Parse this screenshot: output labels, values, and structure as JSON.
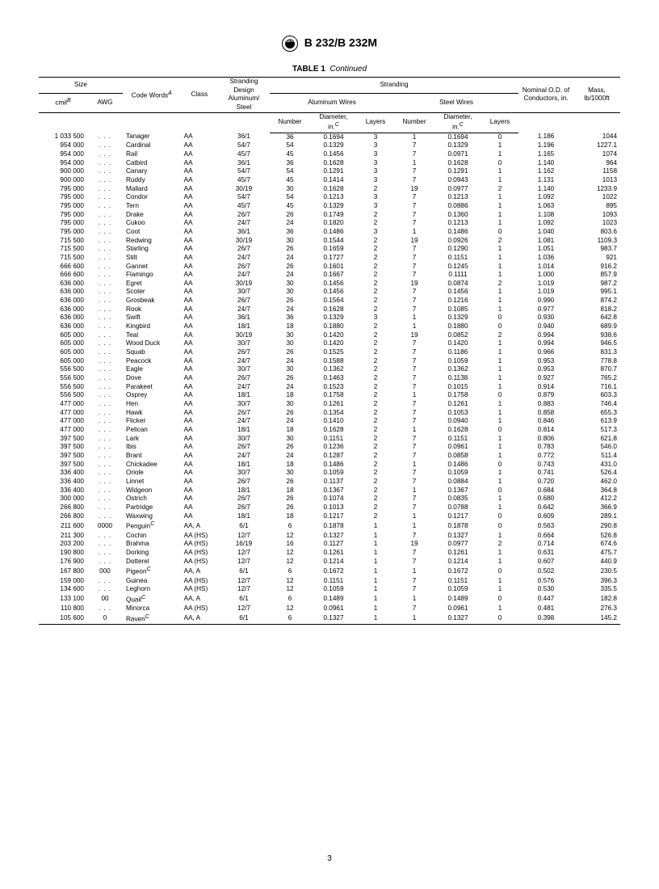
{
  "doc_title": "B 232/B 232M",
  "logo_text": "ASTM",
  "table_label": "TABLE 1",
  "table_cont": "Continued",
  "page_number": "3",
  "headers": {
    "size": "Size",
    "cmil": "cmil",
    "cmil_sup": "B",
    "awg": "AWG",
    "code_words": "Code Words",
    "code_words_sup": "A",
    "class": "Class",
    "strand_design": "Stranding Design Aluminum/ Steel",
    "stranding": "Stranding",
    "al_wires": "Aluminum Wires",
    "steel_wires": "Steel Wires",
    "number": "Number",
    "diameter": "Diameter, in.",
    "diameter_sup": "C",
    "layers": "Layers",
    "nominal_od": "Nominal O.D. of Conductors, in.",
    "mass": "Mass, lb/1000ft"
  },
  "rows": [
    [
      "1 033 500",
      ". . .",
      "Tanager",
      "",
      "AA",
      "36/1",
      "36",
      "0.1694",
      "3",
      "1",
      "0.1694",
      "0",
      "1.186",
      "1044"
    ],
    [
      "954 000",
      ". . .",
      "Cardinal",
      "",
      "AA",
      "54/7",
      "54",
      "0.1329",
      "3",
      "7",
      "0.1329",
      "1",
      "1.196",
      "1227.1"
    ],
    [
      "954 000",
      ". . .",
      "Rail",
      "",
      "AA",
      "45/7",
      "45",
      "0.1456",
      "3",
      "7",
      "0.0971",
      "1",
      "1.165",
      "1074"
    ],
    [
      "954 000",
      ". . .",
      "Catbird",
      "",
      "AA",
      "36/1",
      "36",
      "0.1628",
      "3",
      "1",
      "0.1628",
      "0",
      "1.140",
      "964"
    ],
    [
      "900 000",
      ". . .",
      "Canary",
      "",
      "AA",
      "54/7",
      "54",
      "0.1291",
      "3",
      "7",
      "0.1291",
      "1",
      "1.162",
      "1158"
    ],
    [
      "900 000",
      ". . .",
      "Ruddy",
      "",
      "AA",
      "45/7",
      "45",
      "0.1414",
      "3",
      "7",
      "0.0943",
      "1",
      "1.131",
      "1013"
    ],
    [
      "795 000",
      ". . .",
      "Mallard",
      "",
      "AA",
      "30/19",
      "30",
      "0.1628",
      "2",
      "19",
      "0.0977",
      "2",
      "1.140",
      "1233.9"
    ],
    [
      "795 000",
      ". . .",
      "Condor",
      "",
      "AA",
      "54/7",
      "54",
      "0.1213",
      "3",
      "7",
      "0.1213",
      "1",
      "1.092",
      "1022"
    ],
    [
      "795 000",
      ". . .",
      "Tern",
      "",
      "AA",
      "45/7",
      "45",
      "0.1329",
      "3",
      "7",
      "0.0886",
      "1",
      "1.063",
      "895"
    ],
    [
      "795 000",
      ". . .",
      "Drake",
      "",
      "AA",
      "26/7",
      "26",
      "0.1749",
      "2",
      "7",
      "0.1360",
      "1",
      "1.108",
      "1093"
    ],
    [
      "795 000",
      ". . .",
      "Cukoo",
      "",
      "AA",
      "24/7",
      "24",
      "0.1820",
      "2",
      "7",
      "0.1213",
      "1",
      "1.092",
      "1023"
    ],
    [
      "795 000",
      ". . .",
      "Coot",
      "",
      "AA",
      "36/1",
      "36",
      "0.1486",
      "3",
      "1",
      "0.1486",
      "0",
      "1.040",
      "803.6"
    ],
    [
      "715 500",
      ". . .",
      "Redwing",
      "",
      "AA",
      "30/19",
      "30",
      "0.1544",
      "2",
      "19",
      "0.0926",
      "2",
      "1.081",
      "1109.3"
    ],
    [
      "715 500",
      ". . .",
      "Starling",
      "",
      "AA",
      "26/7",
      "26",
      "0.1659",
      "2",
      "7",
      "0.1290",
      "1",
      "1.051",
      "983.7"
    ],
    [
      "715 500",
      ". . .",
      "Stilt",
      "",
      "AA",
      "24/7",
      "24",
      "0.1727",
      "2",
      "7",
      "0.1151",
      "1",
      "1.036",
      "921"
    ],
    [
      "666 600",
      ". . .",
      "Gannet",
      "",
      "AA",
      "26/7",
      "26",
      "0.1601",
      "2",
      "7",
      "0.1245",
      "1",
      "1.014",
      "916.2"
    ],
    [
      "666 600",
      ". . .",
      "Flamingo",
      "",
      "AA",
      "24/7",
      "24",
      "0.1667",
      "2",
      "7",
      "0.1111",
      "1",
      "1.000",
      "857.9"
    ],
    [
      "636 000",
      ". . .",
      "Egret",
      "",
      "AA",
      "30/19",
      "30",
      "0.1456",
      "2",
      "19",
      "0.0874",
      "2",
      "1.019",
      "987.2"
    ],
    [
      "636 000",
      ". . .",
      "Scoter",
      "",
      "AA",
      "30/7",
      "30",
      "0.1456",
      "2",
      "7",
      "0.1456",
      "1",
      "1.019",
      "995.1"
    ],
    [
      "636 000",
      ". . .",
      "Grosbeak",
      "",
      "AA",
      "26/7",
      "26",
      "0.1564",
      "2",
      "7",
      "0.1216",
      "1",
      "0.990",
      "874.2"
    ],
    [
      "636 000",
      ". . .",
      "Rook",
      "",
      "AA",
      "24/7",
      "24",
      "0.1628",
      "2",
      "7",
      "0.1085",
      "1",
      "0.977",
      "818.2"
    ],
    [
      "636 000",
      ". . .",
      "Swift",
      "",
      "AA",
      "36/1",
      "36",
      "0.1329",
      "3",
      "1",
      "0.1329",
      "0",
      "0.930",
      "642.8"
    ],
    [
      "636 000",
      ". . .",
      "Kingbird",
      "",
      "AA",
      "18/1",
      "18",
      "0.1880",
      "2",
      "1",
      "0.1880",
      "0",
      "0.940",
      "689.9"
    ],
    [
      "605 000",
      ". . .",
      "Teal",
      "",
      "AA",
      "30/19",
      "30",
      "0.1420",
      "2",
      "19",
      "0.0852",
      "2",
      "0.994",
      "938.6"
    ],
    [
      "605 000",
      ". . .",
      "Wood Duck",
      "",
      "AA",
      "30/7",
      "30",
      "0.1420",
      "2",
      "7",
      "0.1420",
      "1",
      "0.994",
      "946.5"
    ],
    [
      "605 000",
      ". . .",
      "Squab",
      "",
      "AA",
      "26/7",
      "26",
      "0.1525",
      "2",
      "7",
      "0.1186",
      "1",
      "0.966",
      "831.3"
    ],
    [
      "605 000",
      ". . .",
      "Peacock",
      "",
      "AA",
      "24/7",
      "24",
      "0.1588",
      "2",
      "7",
      "0.1059",
      "1",
      "0.953",
      "778.8"
    ],
    [
      "556 500",
      ". . .",
      "Eagle",
      "",
      "AA",
      "30/7",
      "30",
      "0.1362",
      "2",
      "7",
      "0.1362",
      "1",
      "0.953",
      "870.7"
    ],
    [
      "556 500",
      ". . .",
      "Dove",
      "",
      "AA",
      "26/7",
      "26",
      "0.1463",
      "2",
      "7",
      "0.1138",
      "1",
      "0.927",
      "765.2"
    ],
    [
      "556 500",
      ". . .",
      "Parakeet",
      "",
      "AA",
      "24/7",
      "24",
      "0.1523",
      "2",
      "7",
      "0.1015",
      "1",
      "0.914",
      "716.1"
    ],
    [
      "556 500",
      ". . .",
      "Osprey",
      "",
      "AA",
      "18/1",
      "18",
      "0.1758",
      "2",
      "1",
      "0.1758",
      "0",
      "0.879",
      "603.3"
    ],
    [
      "477 000",
      ". . .",
      "Hen",
      "",
      "AA",
      "30/7",
      "30",
      "0.1261",
      "2",
      "7",
      "0.1261",
      "1",
      "0.883",
      "746.4"
    ],
    [
      "477 000",
      ". . .",
      "Hawk",
      "",
      "AA",
      "26/7",
      "26",
      "0.1354",
      "2",
      "7",
      "0.1053",
      "1",
      "0.858",
      "655.3"
    ],
    [
      "477 000",
      ". . .",
      "Flicker",
      "",
      "AA",
      "24/7",
      "24",
      "0.1410",
      "2",
      "7",
      "0.0940",
      "1",
      "0.846",
      "613.9"
    ],
    [
      "477 000",
      ". . .",
      "Pelican",
      "",
      "AA",
      "18/1",
      "18",
      "0.1628",
      "2",
      "1",
      "0.1628",
      "0",
      "0.814",
      "517.3"
    ],
    [
      "397 500",
      ". . .",
      "Lark",
      "",
      "AA",
      "30/7",
      "30",
      "0.1151",
      "2",
      "7",
      "0.1151",
      "1",
      "0.806",
      "621.8"
    ],
    [
      "397 500",
      ". . .",
      "Ibis",
      "",
      "AA",
      "26/7",
      "26",
      "0.1236",
      "2",
      "7",
      "0.0961",
      "1",
      "0.783",
      "546.0"
    ],
    [
      "397 500",
      ". . .",
      "Brant",
      "",
      "AA",
      "24/7",
      "24",
      "0.1287",
      "2",
      "7",
      "0.0858",
      "1",
      "0.772",
      "511.4"
    ],
    [
      "397 500",
      ". . .",
      "Chickadee",
      "",
      "AA",
      "18/1",
      "18",
      "0.1486",
      "2",
      "1",
      "0.1486",
      "0",
      "0.743",
      "431.0"
    ],
    [
      "336 400",
      ". . .",
      "Oriole",
      "",
      "AA",
      "30/7",
      "30",
      "0.1059",
      "2",
      "7",
      "0.1059",
      "1",
      "0.741",
      "526.4"
    ],
    [
      "336 400",
      ". . .",
      "Linnet",
      "",
      "AA",
      "26/7",
      "26",
      "0.1137",
      "2",
      "7",
      "0.0884",
      "1",
      "0.720",
      "462.0"
    ],
    [
      "336 400",
      ". . .",
      "Widgeon",
      "",
      "AA",
      "18/1",
      "18",
      "0.1367",
      "2",
      "1",
      "0.1367",
      "0",
      "0.684",
      "364.8"
    ],
    [
      "300 000",
      ". . .",
      "Ostrich",
      "",
      "AA",
      "26/7",
      "26",
      "0.1074",
      "2",
      "7",
      "0.0835",
      "1",
      "0.680",
      "412.2"
    ],
    [
      "266 800",
      ". . .",
      "Partridge",
      "",
      "AA",
      "26/7",
      "26",
      "0.1013",
      "2",
      "7",
      "0.0788",
      "1",
      "0.642",
      "366.9"
    ],
    [
      "266 800",
      ". . .",
      "Waxwing",
      "",
      "AA",
      "18/1",
      "18",
      "0.1217",
      "2",
      "1",
      "0.1217",
      "0",
      "0.609",
      "289.1"
    ],
    [
      "211 600",
      "0000",
      "Penguin",
      "C",
      "AA, A",
      "6/1",
      "6",
      "0.1878",
      "1",
      "1",
      "0.1878",
      "0",
      "0.563",
      "290.8"
    ],
    [
      "211 300",
      ". . .",
      "Cochin",
      "",
      "AA (HS)",
      "12/7",
      "12",
      "0.1327",
      "1",
      "7",
      "0.1327",
      "1",
      "0.664",
      "526.8"
    ],
    [
      "203 200",
      ". . .",
      "Brahma",
      "",
      "AA (HS)",
      "16/19",
      "16",
      "0.1127",
      "1",
      "19",
      "0.0977",
      "2",
      "0.714",
      "674.6"
    ],
    [
      "190 800",
      ". . .",
      "Dorking",
      "",
      "AA (HS)",
      "12/7",
      "12",
      "0.1261",
      "1",
      "7",
      "0.1261",
      "1",
      "0.631",
      "475.7"
    ],
    [
      "176 900",
      ". . .",
      "Dotterel",
      "",
      "AA (HS)",
      "12/7",
      "12",
      "0.1214",
      "1",
      "7",
      "0.1214",
      "1",
      "0.607",
      "440.9"
    ],
    [
      "167 800",
      "000",
      "Pigeon",
      "C",
      "AA, A",
      "6/1",
      "6",
      "0.1672",
      "1",
      "1",
      "0.1672",
      "0",
      "0.502",
      "230.5"
    ],
    [
      "159 000",
      ". . .",
      "Guinea",
      "",
      "AA (HS)",
      "12/7",
      "12",
      "0.1151",
      "1",
      "7",
      "0.1151",
      "1",
      "0.576",
      "396.3"
    ],
    [
      "134 600",
      ". . .",
      "Leghorn",
      "",
      "AA (HS)",
      "12/7",
      "12",
      "0.1059",
      "1",
      "7",
      "0.1059",
      "1",
      "0.530",
      "335.5"
    ],
    [
      "133 100",
      "00",
      "Quail",
      "C",
      "AA, A",
      "6/1",
      "6",
      "0.1489",
      "1",
      "1",
      "0.1489",
      "0",
      "0.447",
      "182.8"
    ],
    [
      "110 800",
      ". . .",
      "Minorca",
      "",
      "AA (HS)",
      "12/7",
      "12",
      "0.0961",
      "1",
      "7",
      "0.0961",
      "1",
      "0.481",
      "276.3"
    ],
    [
      "105 600",
      "0",
      "Raven",
      "C",
      "AA, A",
      "6/1",
      "6",
      "0.1327",
      "1",
      "1",
      "0.1327",
      "0",
      "0.398",
      "145.2"
    ]
  ]
}
